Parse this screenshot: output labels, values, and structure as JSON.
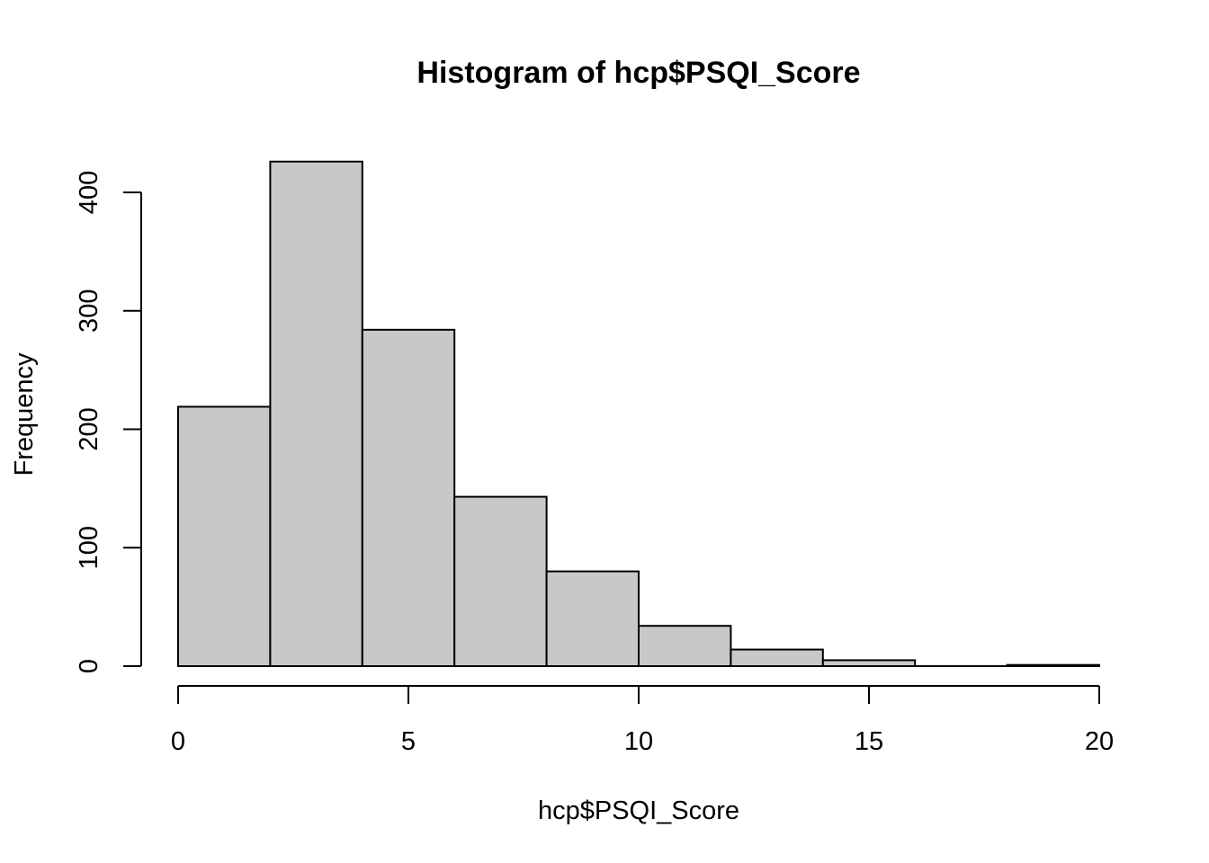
{
  "chart_data": {
    "type": "bar",
    "title": "Histogram of hcp$PSQI_Score",
    "xlabel": "hcp$PSQI_Score",
    "ylabel": "Frequency",
    "bins": [
      {
        "x0": 0,
        "x1": 2,
        "count": 219
      },
      {
        "x0": 2,
        "x1": 4,
        "count": 426
      },
      {
        "x0": 4,
        "x1": 6,
        "count": 284
      },
      {
        "x0": 6,
        "x1": 8,
        "count": 143
      },
      {
        "x0": 8,
        "x1": 10,
        "count": 80
      },
      {
        "x0": 10,
        "x1": 12,
        "count": 34
      },
      {
        "x0": 12,
        "x1": 14,
        "count": 14
      },
      {
        "x0": 14,
        "x1": 16,
        "count": 5
      },
      {
        "x0": 16,
        "x1": 18,
        "count": 0
      },
      {
        "x0": 18,
        "x1": 20,
        "count": 1
      }
    ],
    "xlim": [
      0,
      20
    ],
    "ylim": [
      0,
      426
    ],
    "x_ticks": [
      0,
      5,
      10,
      15,
      20
    ],
    "y_ticks": [
      0,
      100,
      200,
      300,
      400
    ],
    "grid": false,
    "legend": "none",
    "bar_color": "#c8c8c8",
    "edge_color": "#000000"
  }
}
